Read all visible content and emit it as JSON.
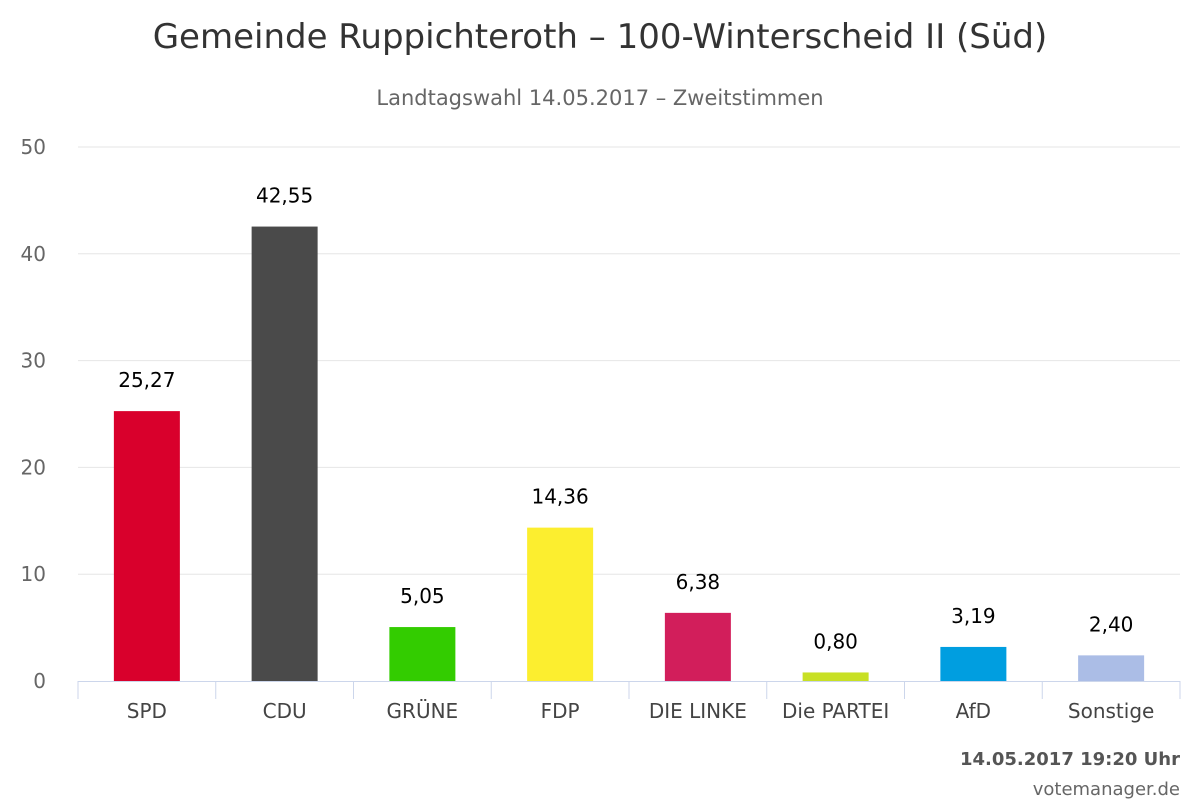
{
  "chart_data": {
    "type": "bar",
    "title": "Gemeinde Ruppichteroth – 100-Winterscheid II (Süd)",
    "subtitle": "Landtagswahl 14.05.2017 – Zweitstimmen",
    "categories": [
      "SPD",
      "CDU",
      "GRÜNE",
      "FDP",
      "DIE LINKE",
      "Die PARTEI",
      "AfD",
      "Sonstige"
    ],
    "values": [
      25.27,
      42.55,
      5.05,
      14.36,
      6.38,
      0.8,
      3.19,
      2.4
    ],
    "value_labels": [
      "25,27",
      "42,55",
      "5,05",
      "14,36",
      "6,38",
      "0,80",
      "3,19",
      "2,40"
    ],
    "colors": [
      "#d9002c",
      "#4a4a4a",
      "#33cc00",
      "#fcee2f",
      "#d21e5b",
      "#c8e024",
      "#009ee0",
      "#abbde6"
    ],
    "ylim": [
      0,
      50
    ],
    "yticks": [
      0,
      10,
      20,
      30,
      40,
      50
    ],
    "grid": true,
    "legend": false
  },
  "credits": {
    "datetime": "14.05.2017 19:20 Uhr",
    "source": "votemanager.de"
  }
}
